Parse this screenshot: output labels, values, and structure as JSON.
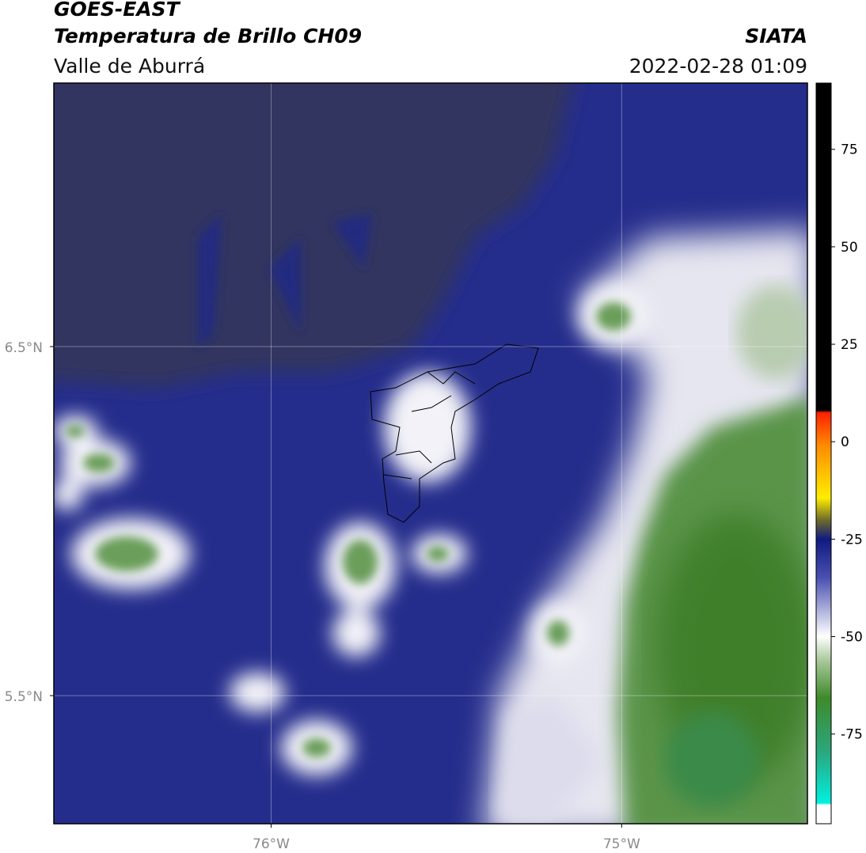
{
  "header": {
    "title": "GOES-EAST",
    "subtitle": "Temperatura de Brillo CH09",
    "region": "Valle de Aburrá",
    "source": "SIATA",
    "datetime": "2022-02-28 01:09"
  },
  "map": {
    "lonlim": [
      -76.62,
      -74.47
    ],
    "latlim": [
      5.133,
      7.255
    ],
    "lonticks": [
      {
        "value": -76,
        "label": "76°W"
      },
      {
        "value": -75,
        "label": "75°W"
      }
    ],
    "latticks": [
      {
        "value": 6.5,
        "label": "6.5°N"
      },
      {
        "value": 5.5,
        "label": "5.5°N"
      }
    ]
  },
  "colorbar": {
    "range": [
      -98,
      92
    ],
    "ticks": [
      75,
      50,
      25,
      0,
      -25,
      -50,
      -75
    ]
  }
}
